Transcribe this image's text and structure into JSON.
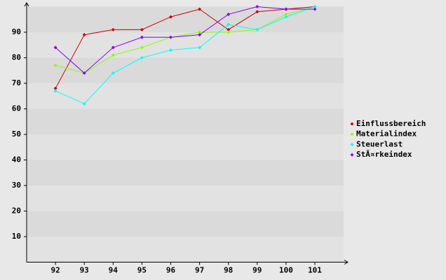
{
  "chart_data": {
    "type": "line",
    "categories": [
      "92",
      "93",
      "94",
      "95",
      "96",
      "97",
      "98",
      "99",
      "100",
      "101"
    ],
    "series": [
      {
        "name": "Einflussbereich",
        "color": "#cc0000",
        "values": [
          68,
          89,
          91,
          91,
          96,
          99,
          91,
          98,
          99,
          100
        ]
      },
      {
        "name": "Materialindex",
        "color": "#88ff00",
        "values": [
          77,
          74,
          81,
          84,
          88,
          90,
          90,
          91,
          97,
          100
        ]
      },
      {
        "name": "Steuerlast",
        "color": "#00ffff",
        "values": [
          67,
          62,
          74,
          80,
          83,
          84,
          93,
          91,
          96,
          100
        ]
      },
      {
        "name": "StÃ¤rkeindex",
        "color": "#8800ee",
        "values": [
          84,
          74,
          84,
          88,
          88,
          89,
          97,
          100,
          99,
          99
        ]
      }
    ],
    "ylim": [
      0,
      100
    ],
    "yticks": [
      10,
      20,
      30,
      40,
      50,
      60,
      70,
      80,
      90
    ],
    "grid": true,
    "legend": "right"
  }
}
